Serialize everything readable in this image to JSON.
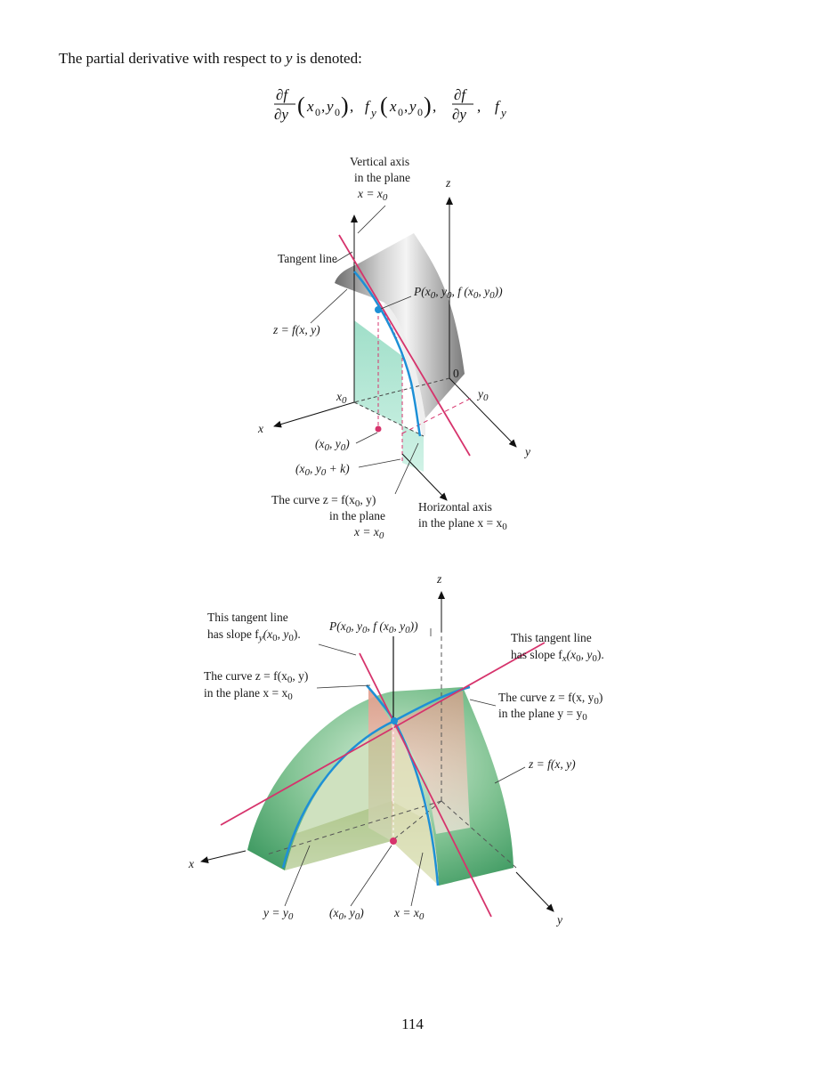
{
  "intro": {
    "prefix": "The partial derivative with respect to ",
    "variable": "y",
    "suffix": " is denoted:"
  },
  "formula": {
    "partial": "∂f",
    "partial_y": "∂y",
    "f": "f",
    "y": "y",
    "args_x": "x",
    "args_y": "y",
    "sub0": "0",
    "comma": ","
  },
  "figure1": {
    "axis_z": "z",
    "axis_x": "x",
    "axis_y": "y",
    "vertical_axis_1": "Vertical axis",
    "vertical_axis_2": "in the plane",
    "vertical_axis_3": "x = x",
    "tangent_line": "Tangent line",
    "point_p": "P(x",
    "surface": "z = f(x, y)",
    "x0": "x",
    "y0": "y",
    "origin": "0",
    "pt1": "(x",
    "pt2": "(x",
    "curve_1": "The curve z = f(x",
    "curve_2": "in the plane",
    "curve_3": "x = x",
    "horiz_1": "Horizontal axis",
    "horiz_2": "in the plane x = x"
  },
  "figure2": {
    "axis_z": "z",
    "axis_x": "x",
    "axis_y": "y",
    "tl_left_1": "This tangent line",
    "tl_left_2": "has slope f",
    "point_p": "P(x",
    "tl_right_1": "This tangent line",
    "tl_right_2": "has slope f",
    "curve_left_1": "The curve z = f(x",
    "curve_left_2": "in the plane x = x",
    "curve_right_1": "The curve z = f(x, y",
    "curve_right_2": "in the plane y = y",
    "surface": "z = f(x, y)",
    "y_eq": "y = y",
    "pt": "(x",
    "x_eq": "x = x"
  },
  "page_number": "114",
  "colors": {
    "tangent": "#d6336c",
    "curve": "#1e90d6",
    "green": "#5fae7a",
    "pink_plane": "#e9a596",
    "teal_plane": "#9ee0c8"
  }
}
